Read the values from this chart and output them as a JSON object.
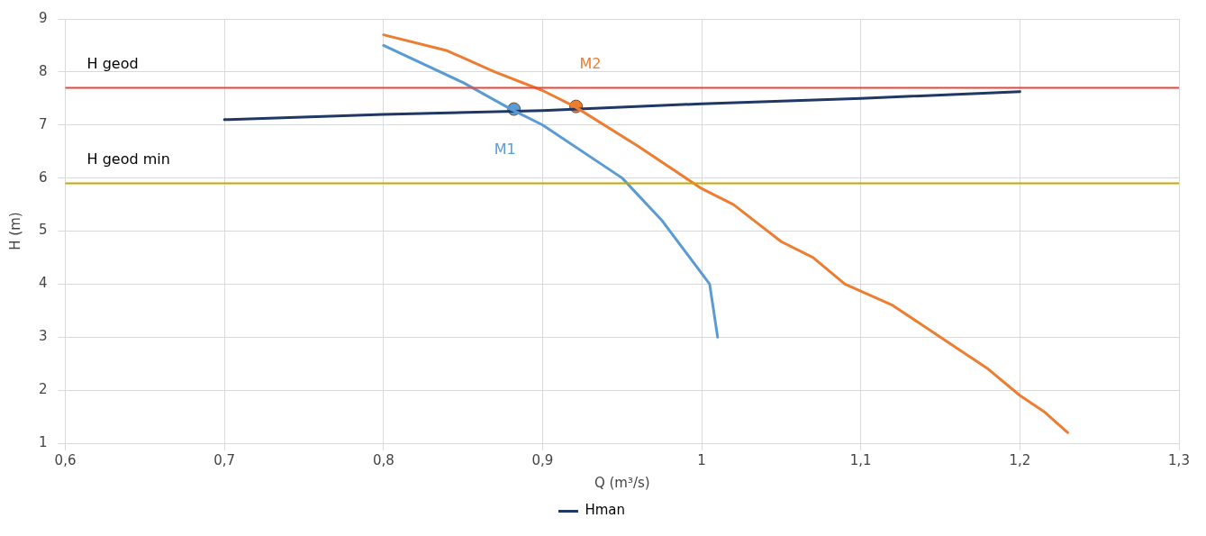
{
  "chart_data": {
    "type": "line",
    "xlabel": "Q (m³/s)",
    "ylabel": "H (m)",
    "xlim": [
      0.6,
      1.3
    ],
    "xticks": [
      {
        "value": 0.6,
        "label": "0,6"
      },
      {
        "value": 0.7,
        "label": "0,7"
      },
      {
        "value": 0.8,
        "label": "0,8"
      },
      {
        "value": 0.9,
        "label": "0,9"
      },
      {
        "value": 1,
        "label": "1"
      },
      {
        "value": 1.1,
        "label": "1,1"
      },
      {
        "value": 1.2,
        "label": "1,2"
      },
      {
        "value": 1.3,
        "label": "1,3"
      }
    ],
    "ylim": [
      1,
      9
    ],
    "yticks": [
      1,
      2,
      3,
      4,
      5,
      6,
      7,
      8,
      9
    ],
    "grid": true,
    "legend": "bottom",
    "line_style": "solid",
    "series": [
      {
        "color": "#5b9bd5",
        "x": [
          0.8,
          0.85,
          0.88,
          0.9,
          0.95,
          0.975,
          1.005,
          1.01
        ],
        "values": [
          8.5,
          7.8,
          7.3,
          7.0,
          6.0,
          5.2,
          4.0,
          3.0
        ]
      },
      {
        "color": "#ed7d31",
        "x": [
          0.8,
          0.84,
          0.87,
          0.9,
          0.92,
          0.96,
          1.0,
          1.02,
          1.05,
          1.07,
          1.09,
          1.12,
          1.15,
          1.18,
          1.2,
          1.215,
          1.23
        ],
        "values": [
          8.7,
          8.4,
          8.0,
          7.65,
          7.35,
          6.6,
          5.8,
          5.5,
          4.8,
          4.5,
          4.0,
          3.6,
          3.0,
          2.4,
          1.9,
          1.6,
          1.2
        ]
      },
      {
        "name": "Hman",
        "color": "#1f3864",
        "x": [
          0.7,
          0.8,
          0.9,
          1.0,
          1.1,
          1.2
        ],
        "values": [
          7.1,
          7.2,
          7.27,
          7.4,
          7.5,
          7.63
        ]
      },
      {
        "type": "scatter",
        "marker": "circle",
        "color": "#5b9bd5",
        "x": [
          0.882
        ],
        "values": [
          7.3
        ]
      },
      {
        "type": "scatter",
        "marker": "circle",
        "color": "#ed7d31",
        "x": [
          0.921
        ],
        "values": [
          7.35
        ]
      }
    ],
    "ref_lines": [
      {
        "axis": "y",
        "value": 7.7,
        "label": "H geod",
        "color": "#e8463a"
      },
      {
        "axis": "y",
        "value": 5.9,
        "label": "H geod min",
        "color": "#c8a800"
      }
    ],
    "annotations": [
      {
        "text": "M1",
        "x": 0.882,
        "y": 7.3
      },
      {
        "text": "M2",
        "x": 0.921,
        "y": 7.35
      }
    ]
  }
}
